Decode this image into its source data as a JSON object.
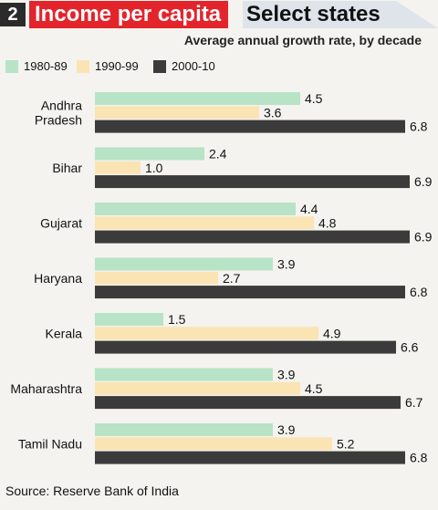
{
  "header": {
    "number": "2",
    "title": "Income per capita",
    "subtitle": "Select states"
  },
  "note": "Average annual growth rate, by decade",
  "colors": {
    "s1980": "#b8e3c6",
    "s1990": "#fbe4b4",
    "s2000": "#3b3b3b",
    "title_bg": "#e4242b"
  },
  "chart_data": {
    "type": "bar",
    "orientation": "horizontal",
    "categories": [
      "Andhra\nPradesh",
      "Bihar",
      "Gujarat",
      "Haryana",
      "Kerala",
      "Maharashtra",
      "Tamil Nadu"
    ],
    "series": [
      {
        "name": "1980-89",
        "values": [
          4.5,
          2.4,
          4.4,
          3.9,
          1.5,
          3.9,
          3.9
        ]
      },
      {
        "name": "1990-99",
        "values": [
          3.6,
          1.0,
          4.8,
          2.7,
          4.9,
          4.5,
          5.2
        ]
      },
      {
        "name": "2000-10",
        "values": [
          6.8,
          6.9,
          6.9,
          6.8,
          6.6,
          6.7,
          6.8
        ]
      }
    ],
    "value_labels": [
      [
        "4.5",
        "2.4",
        "4.4",
        "3.9",
        "1.5",
        "3.9",
        "3.9"
      ],
      [
        "3.6",
        "1.0",
        "4.8",
        "2.7",
        "4.9",
        "4.5",
        "5.2"
      ],
      [
        "6.8",
        "6.9",
        "6.9",
        "6.8",
        "6.6",
        "6.7",
        "6.8"
      ]
    ],
    "xlim": [
      0,
      7
    ],
    "grid": false,
    "legend_position": "top-left"
  },
  "source": "Source: Reserve Bank of India"
}
